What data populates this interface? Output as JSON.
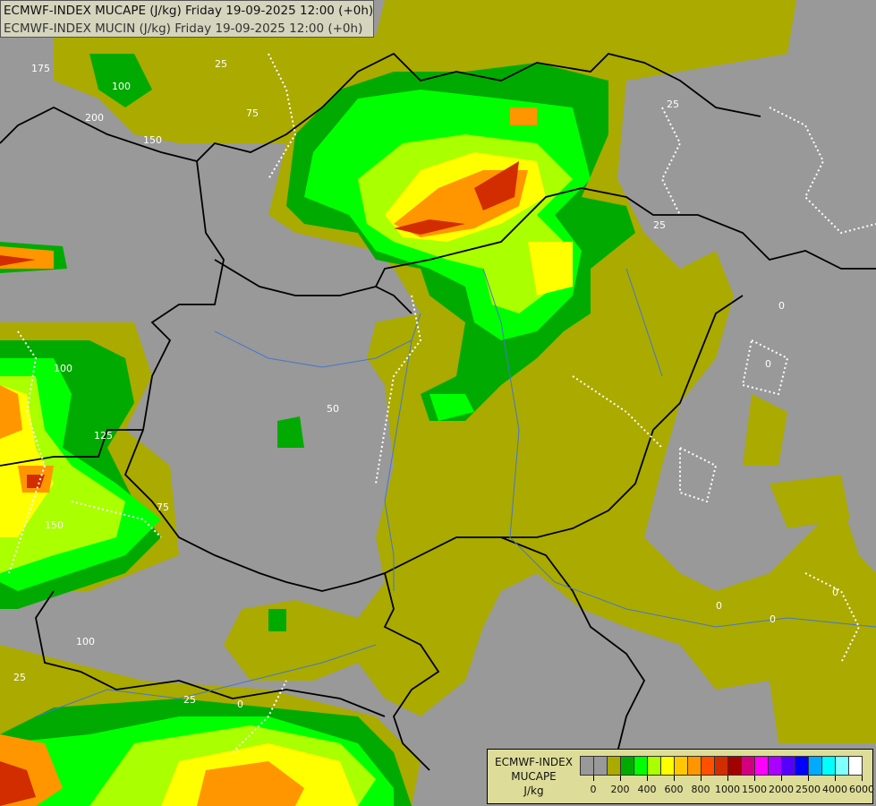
{
  "header": {
    "line1": "ECMWF-INDEX MUCAPE (J/kg) Friday 19-09-2025 12:00 (+0h)",
    "line2": "ECMWF-INDEX MUCIN (J/kg) Friday 19-09-2025 12:00 (+0h)"
  },
  "legend": {
    "title_line1": "ECMWF-INDEX",
    "title_line2": "MUCAPE",
    "unit": "J/kg",
    "colors": [
      "#999999",
      "#999999",
      "#aaaa00",
      "#00aa00",
      "#00ff00",
      "#aaff00",
      "#ffff00",
      "#ffc800",
      "#ff9600",
      "#ff5000",
      "#d22d00",
      "#a50000",
      "#d2007f",
      "#ff00ff",
      "#aa00ff",
      "#5500ff",
      "#0000ff",
      "#00aaff",
      "#00ffff",
      "#80ffff",
      "#ffffff"
    ],
    "tick_labels": [
      "0",
      "200",
      "400",
      "600",
      "800",
      "1000",
      "1500",
      "2000",
      "2500",
      "4000",
      "6000"
    ]
  },
  "map": {
    "background_color": "#999999",
    "border_color": "#000000",
    "river_color": "#4477cc",
    "contour_color": "#ffffff",
    "contour_labels": [
      "175",
      "100",
      "200",
      "150",
      "25",
      "75",
      "25",
      "25",
      "0",
      "0",
      "0",
      "50",
      "100",
      "125",
      "75",
      "150",
      "100",
      "25",
      "25",
      "0",
      "0",
      "0"
    ]
  }
}
